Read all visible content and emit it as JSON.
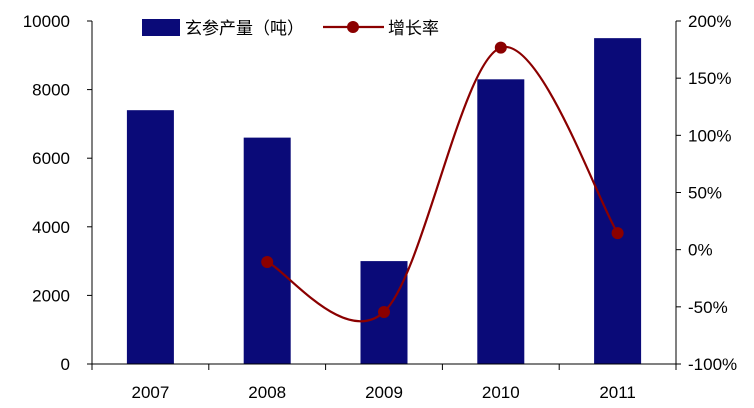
{
  "chart_data": {
    "type": "bar",
    "title": "",
    "xlabel": "",
    "ylabel": "",
    "categories": [
      "2007",
      "2008",
      "2009",
      "2010",
      "2011"
    ],
    "series": [
      {
        "name": "玄参产量（吨）",
        "type": "bar",
        "axis": "left",
        "color": "#0a0a78",
        "values": [
          7400,
          6600,
          3000,
          8300,
          9500
        ]
      },
      {
        "name": "增长率",
        "type": "line",
        "axis": "right",
        "color": "#8b0000",
        "smooth": true,
        "values": [
          null,
          -10.8,
          -54.5,
          176.7,
          14.5
        ]
      }
    ],
    "y_left": {
      "min": 0,
      "max": 10000,
      "step": 2000,
      "tick_labels": [
        "0",
        "2000",
        "4000",
        "6000",
        "8000",
        "10000"
      ]
    },
    "y_right": {
      "min": -100,
      "max": 200,
      "step": 50,
      "tick_labels": [
        "-100%",
        "-50%",
        "0%",
        "50%",
        "100%",
        "150%",
        "200%"
      ]
    },
    "legend": {
      "position": "top-center"
    },
    "grid": false
  }
}
